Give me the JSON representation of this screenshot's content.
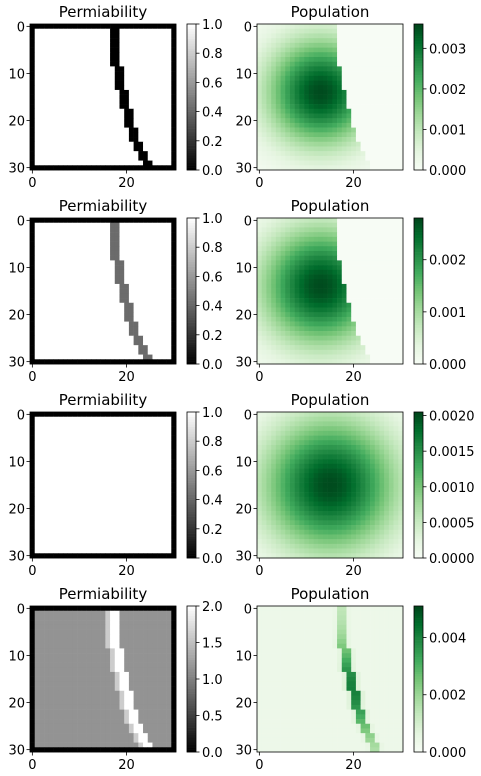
{
  "chart_data": [
    {
      "type": "heatmap",
      "row": 1,
      "title": "Permiability",
      "cmap": "gray",
      "grid_size": 31,
      "x_ticks": [
        0,
        20
      ],
      "y_ticks": [
        0,
        10,
        20,
        30
      ],
      "colorbar": {
        "min": 0.0,
        "max": 1.0,
        "ticks": [
          "0.0",
          "0.2",
          "0.4",
          "0.6",
          "0.8",
          "1.0"
        ]
      },
      "field": {
        "kind": "permeability",
        "frame_value": 0.0,
        "background_value": 1.0,
        "barrier_value": 0.0,
        "barrier_width": 2,
        "edge_value": null
      }
    },
    {
      "type": "heatmap",
      "row": 1,
      "title": "Population",
      "cmap": "Greens",
      "grid_size": 31,
      "x_ticks": [
        0,
        20
      ],
      "y_ticks": [
        0,
        10,
        20,
        30
      ],
      "colorbar": {
        "min": 0.0,
        "max": 0.0036,
        "ticks": [
          "0.000",
          "0.001",
          "0.002",
          "0.003"
        ]
      },
      "field": {
        "kind": "population",
        "center_row": 14,
        "center_col": 13,
        "spread": 0.5,
        "right_region_value": 0.0,
        "barrier_value": 0.0
      }
    },
    {
      "type": "heatmap",
      "row": 2,
      "title": "Permiability",
      "cmap": "gray",
      "grid_size": 31,
      "x_ticks": [
        0,
        20
      ],
      "y_ticks": [
        0,
        10,
        20,
        30
      ],
      "colorbar": {
        "min": 0.0,
        "max": 1.0,
        "ticks": [
          "0.0",
          "0.2",
          "0.4",
          "0.6",
          "0.8",
          "1.0"
        ]
      },
      "field": {
        "kind": "permeability",
        "frame_value": 0.0,
        "background_value": 1.0,
        "barrier_value": 0.42,
        "barrier_width": 2,
        "edge_value": null
      }
    },
    {
      "type": "heatmap",
      "row": 2,
      "title": "Population",
      "cmap": "Greens",
      "grid_size": 31,
      "x_ticks": [
        0,
        20
      ],
      "y_ticks": [
        0,
        10,
        20,
        30
      ],
      "colorbar": {
        "min": 0.0,
        "max": 0.0028,
        "ticks": [
          "0.000",
          "0.001",
          "0.002"
        ]
      },
      "field": {
        "kind": "population",
        "center_row": 14,
        "center_col": 13,
        "spread": 0.55,
        "right_region_value": 0.0006,
        "barrier_value": 5e-05
      }
    },
    {
      "type": "heatmap",
      "row": 3,
      "title": "Permiability",
      "cmap": "gray",
      "grid_size": 31,
      "x_ticks": [
        0,
        20
      ],
      "y_ticks": [
        0,
        10,
        20,
        30
      ],
      "colorbar": {
        "min": 0.0,
        "max": 1.0,
        "ticks": [
          "0.0",
          "0.2",
          "0.4",
          "0.6",
          "0.8",
          "1.0"
        ]
      },
      "field": {
        "kind": "permeability",
        "frame_value": 0.0,
        "background_value": 1.0,
        "barrier_value": null,
        "barrier_width": 0,
        "edge_value": null
      }
    },
    {
      "type": "heatmap",
      "row": 3,
      "title": "Population",
      "cmap": "Greens",
      "grid_size": 31,
      "x_ticks": [
        0,
        20
      ],
      "y_ticks": [
        0,
        10,
        20,
        30
      ],
      "colorbar": {
        "min": 0.0,
        "max": 0.00205,
        "ticks": [
          "0.0000",
          "0.0005",
          "0.0010",
          "0.0015",
          "0.0020"
        ]
      },
      "field": {
        "kind": "population",
        "center_row": 15,
        "center_col": 15,
        "spread": 0.62,
        "right_region_value": null,
        "barrier_value": null
      }
    },
    {
      "type": "heatmap",
      "row": 4,
      "title": "Permiability",
      "cmap": "gray",
      "grid_size": 31,
      "x_ticks": [
        0,
        20
      ],
      "y_ticks": [
        0,
        10,
        20,
        30
      ],
      "colorbar": {
        "min": 0.0,
        "max": 2.0,
        "ticks": [
          "0.0",
          "0.5",
          "1.0",
          "1.5",
          "2.0"
        ]
      },
      "field": {
        "kind": "permeability",
        "frame_value": 0.0,
        "background_value": 1.15,
        "barrier_value": 2.0,
        "barrier_width": 2,
        "edge_value": 1.6
      }
    },
    {
      "type": "heatmap",
      "row": 4,
      "title": "Population",
      "cmap": "Greens",
      "grid_size": 31,
      "x_ticks": [
        0,
        20
      ],
      "y_ticks": [
        0,
        10,
        20,
        30
      ],
      "colorbar": {
        "min": 0.0,
        "max": 0.0051,
        "ticks": [
          "0.000",
          "0.002",
          "0.004"
        ]
      },
      "field": {
        "kind": "population_barrier",
        "background_value": 0.00035,
        "barrier_peak": 0.0049,
        "peak_row": 17
      }
    }
  ]
}
